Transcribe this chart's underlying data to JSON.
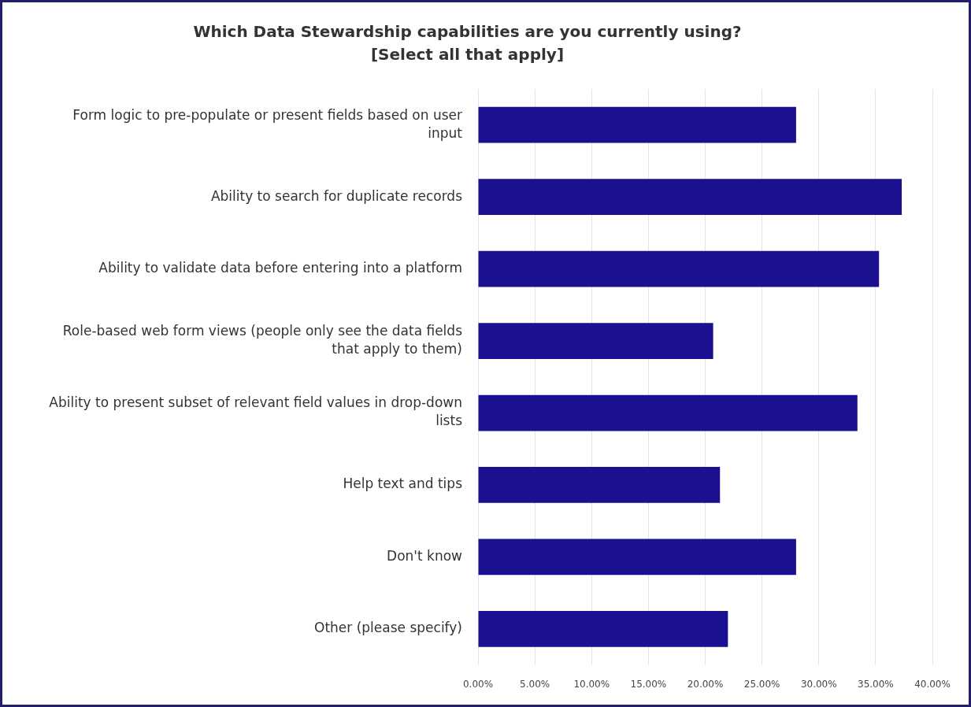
{
  "chart_data": {
    "type": "bar",
    "orientation": "horizontal",
    "title": "Which Data Stewardship capabilities are you currently using? [Select all that apply]",
    "categories": [
      "Form logic to pre-populate or present fields based on user input",
      "Ability to search for duplicate records",
      "Ability to validate data before entering into a platform",
      "Role-based web form views (people only see the data fields that apply to them)",
      "Ability to present subset of relevant field values in drop-down lists",
      "Help text and tips",
      "Don't know",
      "Other (please specify)"
    ],
    "values": [
      28.0,
      37.3,
      35.3,
      20.7,
      33.4,
      21.3,
      28.0,
      22.0
    ],
    "color": "#1a1090",
    "xlim": [
      0,
      40
    ],
    "xticks": [
      {
        "value": 0,
        "label": "0.00%"
      },
      {
        "value": 5,
        "label": "5.00%"
      },
      {
        "value": 10,
        "label": "10.00%"
      },
      {
        "value": 15,
        "label": "15.00%"
      },
      {
        "value": 20,
        "label": "20.00%"
      },
      {
        "value": 25,
        "label": "25.00%"
      },
      {
        "value": 30,
        "label": "30.00%"
      },
      {
        "value": 35,
        "label": "35.00%"
      },
      {
        "value": 40,
        "label": "40.00%"
      }
    ],
    "grid": "x"
  }
}
